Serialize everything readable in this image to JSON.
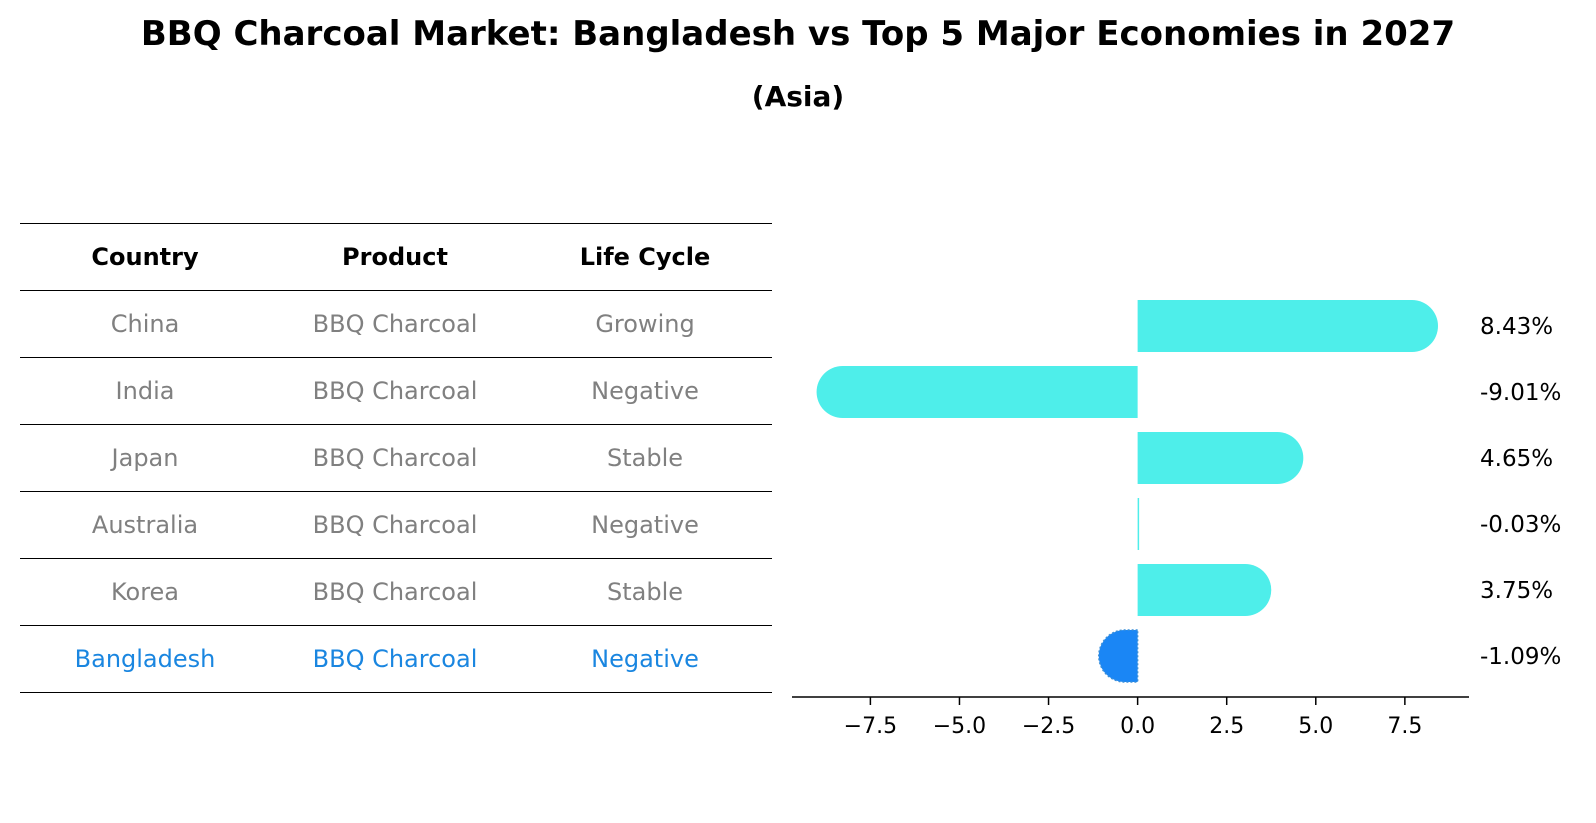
{
  "page": {
    "title": "BBQ Charcoal Market: Bangladesh vs Top 5 Major Economies in 2027",
    "subtitle": "(Asia)"
  },
  "table": {
    "headers": [
      "Country",
      "Product",
      "Life Cycle"
    ],
    "rows": [
      [
        "China",
        "BBQ Charcoal",
        "Growing"
      ],
      [
        "India",
        "BBQ Charcoal",
        "Negative"
      ],
      [
        "Japan",
        "BBQ Charcoal",
        "Stable"
      ],
      [
        "Australia",
        "BBQ Charcoal",
        "Negative"
      ],
      [
        "Korea",
        "BBQ Charcoal",
        "Stable"
      ],
      [
        "Bangladesh",
        "BBQ Charcoal",
        "Negative"
      ]
    ]
  },
  "colors": {
    "bar": "#4eeeea",
    "highlight": "#1a86f5",
    "highlight_text": "#1a86e0",
    "muted_text": "#808080"
  },
  "chart_data": {
    "type": "bar",
    "orientation": "horizontal",
    "categories": [
      "China",
      "India",
      "Japan",
      "Australia",
      "Korea",
      "Bangladesh"
    ],
    "values": [
      8.43,
      -9.01,
      4.65,
      -0.03,
      3.75,
      -1.09
    ],
    "labels": [
      "8.43%",
      "-9.01%",
      "4.65%",
      "-0.03%",
      "3.75%",
      "-1.09%"
    ],
    "highlight": "Bangladesh",
    "xlim": [
      -9.7,
      9.3
    ],
    "xticks": [
      -7.5,
      -5.0,
      -2.5,
      0.0,
      2.5,
      5.0,
      7.5
    ],
    "xtick_labels": [
      "−7.5",
      "−5.0",
      "−2.5",
      "0.0",
      "2.5",
      "5.0",
      "7.5"
    ],
    "grid": false
  }
}
